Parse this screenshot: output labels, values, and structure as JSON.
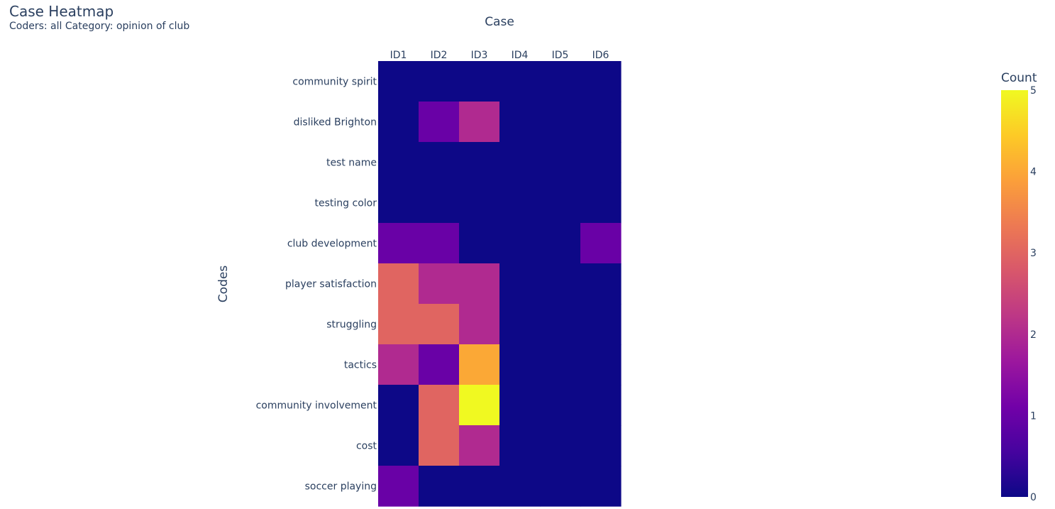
{
  "chart_data": {
    "type": "heatmap",
    "title": "Case Heatmap",
    "subtitle": "Coders: all Category: opinion of club",
    "xlabel": "Case",
    "ylabel": "Codes",
    "x": [
      "ID1",
      "ID2",
      "ID3",
      "ID4",
      "ID5",
      "ID6"
    ],
    "y": [
      "community spirit",
      "disliked Brighton",
      "test name",
      "testing color",
      "club development",
      "player satisfaction",
      "struggling",
      "tactics",
      "community involvement",
      "cost",
      "soccer playing"
    ],
    "z": [
      [
        0,
        0,
        0,
        0,
        0,
        0
      ],
      [
        0,
        1,
        2,
        0,
        0,
        0
      ],
      [
        0,
        0,
        0,
        0,
        0,
        0
      ],
      [
        0,
        0,
        0,
        0,
        0,
        0
      ],
      [
        1,
        1,
        0,
        0,
        0,
        1
      ],
      [
        3,
        2,
        2,
        0,
        0,
        0
      ],
      [
        3,
        3,
        2,
        0,
        0,
        0
      ],
      [
        2,
        1,
        4,
        0,
        0,
        0
      ],
      [
        0,
        3,
        5,
        0,
        0,
        0
      ],
      [
        0,
        3,
        2,
        0,
        0,
        0
      ],
      [
        1,
        0,
        0,
        0,
        0,
        0
      ]
    ],
    "zlim": [
      0,
      5
    ],
    "colorbar": {
      "title": "Count",
      "ticks": [
        0,
        1,
        2,
        3,
        4,
        5
      ],
      "position": "right"
    },
    "colorscale": [
      "#0d0887",
      "#46039f",
      "#7201a8",
      "#9c179e",
      "#bd3786",
      "#d8576b",
      "#ed7953",
      "#fb9f3a",
      "#fdca26",
      "#f0f921"
    ],
    "x_axis_side": "top"
  }
}
